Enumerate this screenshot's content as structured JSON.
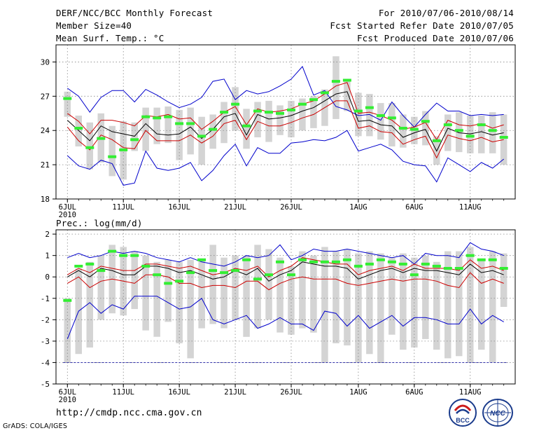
{
  "header": {
    "title": "DERF/NCC/BCC Monthly Forecast",
    "member_size": "Member Size=40",
    "variable": "Mean Surf. Temp.: °C",
    "period": "For 2010/07/06-2010/08/14",
    "start_date": "Fcst Started Refer Date 2010/07/05",
    "produced_date": "Fcst Produced Date 2010/07/06"
  },
  "panel2_label": "Prec.: log(mm/d)",
  "footer": {
    "url": "http://cmdp.ncc.cma.gov.cn",
    "grads": "GrADS: COLA/IGES",
    "logo_bcc": "BCC",
    "logo_ncc": "NCC"
  },
  "colors": {
    "max_min": "#0000cc",
    "spread": "#cc0000",
    "mean": "#000000",
    "observed": "#33ee33",
    "bar": "#d4d4d4"
  },
  "chart_data": [
    {
      "type": "line",
      "title": "Mean Surf. Temp.: °C",
      "xlabel": "",
      "ylabel": "",
      "ylim": [
        18,
        31.5
      ],
      "yticks": [
        18,
        21,
        24,
        27,
        30
      ],
      "x_tick_labels": [
        "6JUL",
        "11JUL",
        "16JUL",
        "21JUL",
        "26JUL",
        "1AUG",
        "6AUG",
        "11AUG"
      ],
      "x_tick_days": [
        1,
        6,
        11,
        16,
        21,
        27,
        32,
        37
      ],
      "x_sublabel": "2010",
      "days": [
        1,
        2,
        3,
        4,
        5,
        6,
        7,
        8,
        9,
        10,
        11,
        12,
        13,
        14,
        15,
        16,
        17,
        18,
        19,
        20,
        21,
        22,
        23,
        24,
        25,
        26,
        27,
        28,
        29,
        30,
        31,
        32,
        33,
        34,
        35,
        36,
        37,
        38,
        39,
        40
      ],
      "series": [
        {
          "name": "max",
          "values": [
            27.7,
            27.0,
            25.6,
            26.9,
            27.5,
            27.5,
            26.5,
            27.6,
            27.1,
            26.5,
            26.0,
            26.3,
            26.9,
            28.3,
            28.5,
            26.7,
            27.5,
            27.2,
            27.4,
            27.9,
            28.5,
            29.6,
            27.1,
            27.5,
            26.1,
            25.8,
            25.3,
            25.4,
            24.9,
            26.5,
            25.3,
            24.3,
            25.4,
            26.4,
            25.7,
            25.7,
            25.3,
            25.4,
            25.3,
            25.4
          ]
        },
        {
          "name": "upper",
          "values": [
            25.5,
            24.8,
            23.7,
            24.9,
            24.9,
            24.7,
            24.4,
            25.3,
            25.2,
            25.4,
            25.0,
            25.1,
            24.1,
            24.8,
            25.6,
            26.1,
            24.5,
            25.9,
            25.6,
            25.7,
            25.9,
            26.3,
            26.6,
            27.2,
            27.9,
            28.2,
            25.5,
            25.6,
            25.3,
            24.9,
            24.1,
            24.3,
            24.7,
            23.2,
            24.9,
            24.5,
            24.4,
            24.6,
            24.2,
            24.5
          ]
        },
        {
          "name": "mean",
          "values": [
            24.9,
            24.0,
            23.1,
            24.4,
            23.9,
            23.7,
            23.5,
            24.6,
            23.7,
            23.6,
            23.7,
            24.3,
            23.3,
            24.1,
            25.2,
            25.5,
            23.6,
            25.4,
            25.0,
            25.1,
            25.3,
            25.7,
            26.0,
            26.6,
            27.2,
            27.4,
            24.8,
            24.9,
            24.5,
            24.4,
            23.4,
            23.8,
            24.1,
            22.2,
            24.2,
            23.8,
            23.7,
            23.9,
            23.6,
            23.8
          ]
        },
        {
          "name": "lower",
          "values": [
            24.3,
            23.1,
            22.3,
            23.6,
            23.2,
            22.5,
            22.4,
            24.0,
            23.1,
            23.1,
            23.1,
            23.6,
            22.9,
            23.5,
            24.6,
            24.9,
            23.2,
            24.8,
            24.4,
            24.4,
            24.7,
            25.1,
            25.4,
            26.0,
            26.6,
            26.6,
            24.2,
            24.4,
            23.9,
            23.8,
            22.8,
            23.2,
            23.5,
            21.6,
            23.6,
            23.3,
            23.1,
            23.4,
            23.0,
            23.2
          ]
        },
        {
          "name": "min",
          "values": [
            21.8,
            20.9,
            20.6,
            21.4,
            21.1,
            19.2,
            19.4,
            22.2,
            20.7,
            20.5,
            20.7,
            21.2,
            19.6,
            20.5,
            21.8,
            22.8,
            20.9,
            22.5,
            22.0,
            22.0,
            22.9,
            23.0,
            23.2,
            23.1,
            23.4,
            24.0,
            22.2,
            22.5,
            22.8,
            22.3,
            21.3,
            21.0,
            20.9,
            19.5,
            21.6,
            21.0,
            20.4,
            21.2,
            20.7,
            21.5
          ]
        },
        {
          "name": "observed",
          "values": [
            26.8,
            24.2,
            22.5,
            23.3,
            21.7,
            22.3,
            23.2,
            25.2,
            25.1,
            25.2,
            24.6,
            24.6,
            23.5,
            24.1,
            25.6,
            26.3,
            24.4,
            25.7,
            25.6,
            25.5,
            25.8,
            26.3,
            26.7,
            27.3,
            28.3,
            28.4,
            25.7,
            26.0,
            25.3,
            25.1,
            24.2,
            24.1,
            24.8,
            23.1,
            24.5,
            24.0,
            23.5,
            24.5,
            24.0,
            23.4
          ]
        }
      ],
      "bars": [
        {
          "lo": 25.2,
          "hi": 27.4
        },
        {
          "lo": 22.6,
          "hi": 25.3
        },
        {
          "lo": 20.6,
          "hi": 24.7
        },
        {
          "lo": 21.2,
          "hi": 25.5
        },
        {
          "lo": 20.0,
          "hi": 24.4
        },
        {
          "lo": 19.7,
          "hi": 24.8
        },
        {
          "lo": 22.2,
          "hi": 24.7
        },
        {
          "lo": 22.2,
          "hi": 26.0
        },
        {
          "lo": 22.8,
          "hi": 26.0
        },
        {
          "lo": 22.9,
          "hi": 26.1
        },
        {
          "lo": 21.4,
          "hi": 25.8
        },
        {
          "lo": 21.9,
          "hi": 26.0
        },
        {
          "lo": 21.0,
          "hi": 25.2
        },
        {
          "lo": 22.4,
          "hi": 25.4
        },
        {
          "lo": 22.9,
          "hi": 26.5
        },
        {
          "lo": 24.0,
          "hi": 27.8
        },
        {
          "lo": 22.4,
          "hi": 25.9
        },
        {
          "lo": 23.4,
          "hi": 26.5
        },
        {
          "lo": 23.0,
          "hi": 26.6
        },
        {
          "lo": 23.6,
          "hi": 26.2
        },
        {
          "lo": 23.4,
          "hi": 26.6
        },
        {
          "lo": 24.0,
          "hi": 26.8
        },
        {
          "lo": 24.2,
          "hi": 27.0
        },
        {
          "lo": 24.4,
          "hi": 27.6
        },
        {
          "lo": 25.0,
          "hi": 30.5
        },
        {
          "lo": 25.7,
          "hi": 28.5
        },
        {
          "lo": 23.5,
          "hi": 27.3
        },
        {
          "lo": 23.5,
          "hi": 27.2
        },
        {
          "lo": 23.2,
          "hi": 26.4
        },
        {
          "lo": 22.6,
          "hi": 26.4
        },
        {
          "lo": 22.5,
          "hi": 25.4
        },
        {
          "lo": 22.8,
          "hi": 25.2
        },
        {
          "lo": 22.7,
          "hi": 25.7
        },
        {
          "lo": 21.0,
          "hi": 23.5
        },
        {
          "lo": 22.2,
          "hi": 25.4
        },
        {
          "lo": 22.1,
          "hi": 25.6
        },
        {
          "lo": 22.0,
          "hi": 25.3
        },
        {
          "lo": 22.0,
          "hi": 25.3
        },
        {
          "lo": 22.0,
          "hi": 25.6
        },
        {
          "lo": 21.0,
          "hi": 25.4
        }
      ]
    },
    {
      "type": "line",
      "title": "Prec.: log(mm/d)",
      "xlabel": "",
      "ylabel": "",
      "ylim": [
        -5,
        2.2
      ],
      "yticks": [
        -5,
        -4,
        -3,
        -2,
        -1,
        0,
        1,
        2
      ],
      "x_tick_labels": [
        "6JUL",
        "11JUL",
        "16JUL",
        "21JUL",
        "26JUL",
        "1AUG",
        "6AUG",
        "11AUG"
      ],
      "x_tick_days": [
        1,
        6,
        11,
        16,
        21,
        27,
        32,
        37
      ],
      "x_sublabel": "2010",
      "days": [
        1,
        2,
        3,
        4,
        5,
        6,
        7,
        8,
        9,
        10,
        11,
        12,
        13,
        14,
        15,
        16,
        17,
        18,
        19,
        20,
        21,
        22,
        23,
        24,
        25,
        26,
        27,
        28,
        29,
        30,
        31,
        32,
        33,
        34,
        35,
        36,
        37,
        38,
        39,
        40
      ],
      "reference_line": -4,
      "series": [
        {
          "name": "max",
          "values": [
            0.9,
            1.1,
            0.9,
            1.0,
            1.2,
            1.1,
            1.2,
            1.1,
            0.9,
            0.8,
            0.7,
            0.9,
            0.7,
            0.6,
            0.5,
            0.7,
            1.0,
            0.9,
            1.0,
            1.5,
            0.8,
            1.0,
            1.3,
            1.2,
            1.2,
            1.3,
            1.2,
            1.1,
            1.0,
            0.9,
            1.0,
            0.6,
            1.1,
            1.0,
            1.0,
            0.9,
            1.6,
            1.3,
            1.2,
            1.0
          ]
        },
        {
          "name": "upper",
          "values": [
            0.1,
            0.4,
            0.2,
            0.5,
            0.4,
            0.3,
            0.3,
            0.6,
            0.6,
            0.5,
            0.4,
            0.5,
            0.3,
            0.1,
            0.2,
            0.4,
            0.3,
            0.5,
            0.0,
            0.3,
            0.5,
            0.9,
            0.8,
            0.7,
            0.6,
            0.6,
            0.1,
            0.3,
            0.4,
            0.5,
            0.3,
            0.6,
            0.4,
            0.4,
            0.4,
            0.3,
            0.8,
            0.4,
            0.5,
            0.3
          ]
        },
        {
          "name": "mean",
          "values": [
            0.0,
            0.3,
            0.0,
            0.4,
            0.3,
            0.1,
            0.1,
            0.5,
            0.5,
            0.4,
            0.2,
            0.3,
            0.1,
            -0.1,
            0.0,
            0.3,
            0.1,
            0.4,
            -0.2,
            0.1,
            0.3,
            0.7,
            0.6,
            0.5,
            0.5,
            0.4,
            -0.1,
            0.1,
            0.3,
            0.4,
            0.2,
            0.4,
            0.3,
            0.3,
            0.2,
            0.1,
            0.6,
            0.2,
            0.3,
            0.1
          ]
        },
        {
          "name": "lower",
          "values": [
            -0.3,
            0.0,
            -0.5,
            -0.2,
            -0.1,
            -0.2,
            -0.3,
            0.1,
            0.1,
            0.0,
            -0.3,
            -0.3,
            -0.5,
            -0.4,
            -0.4,
            -0.5,
            -0.2,
            -0.2,
            -0.6,
            -0.3,
            -0.1,
            0.0,
            -0.1,
            -0.1,
            -0.1,
            -0.3,
            -0.4,
            -0.3,
            -0.2,
            -0.1,
            -0.2,
            -0.1,
            -0.1,
            -0.2,
            -0.4,
            -0.5,
            0.2,
            -0.3,
            -0.1,
            -0.3
          ]
        },
        {
          "name": "min",
          "values": [
            -2.9,
            -1.6,
            -1.2,
            -1.7,
            -1.3,
            -1.5,
            -0.9,
            -0.9,
            -0.9,
            -1.2,
            -1.5,
            -1.4,
            -1.0,
            -2.0,
            -2.2,
            -2.0,
            -1.8,
            -2.4,
            -2.2,
            -1.9,
            -2.2,
            -2.2,
            -2.5,
            -1.6,
            -1.7,
            -2.3,
            -1.8,
            -2.4,
            -2.1,
            -1.8,
            -2.3,
            -1.9,
            -1.9,
            -2.0,
            -2.2,
            -2.2,
            -1.5,
            -2.2,
            -1.8,
            -2.1
          ]
        },
        {
          "name": "observed",
          "values": [
            -1.1,
            0.5,
            0.6,
            0.3,
            1.2,
            1.0,
            1.0,
            0.5,
            0.1,
            -0.3,
            -0.2,
            0.2,
            0.8,
            0.3,
            0.2,
            0.3,
            0.8,
            -0.1,
            0.1,
            0.7,
            0.1,
            0.8,
            0.7,
            0.7,
            0.7,
            0.8,
            0.5,
            0.6,
            0.8,
            0.7,
            0.6,
            0.1,
            0.6,
            0.5,
            0.4,
            0.4,
            1.0,
            0.8,
            0.8,
            0.4
          ]
        }
      ],
      "bars": [
        {
          "lo": -4.0,
          "hi": -1.0
        },
        {
          "lo": -3.6,
          "hi": 0.4
        },
        {
          "lo": -3.3,
          "hi": 0.7
        },
        {
          "lo": -2.0,
          "hi": 1.0
        },
        {
          "lo": -1.7,
          "hi": 1.5
        },
        {
          "lo": -1.8,
          "hi": 1.4
        },
        {
          "lo": -1.5,
          "hi": 1.2
        },
        {
          "lo": -2.5,
          "hi": 1.0
        },
        {
          "lo": -2.8,
          "hi": 0.7
        },
        {
          "lo": -2.1,
          "hi": 0.8
        },
        {
          "lo": -3.1,
          "hi": 0.7
        },
        {
          "lo": -3.8,
          "hi": 0.8
        },
        {
          "lo": -2.4,
          "hi": 0.8
        },
        {
          "lo": -2.2,
          "hi": 1.5
        },
        {
          "lo": -2.4,
          "hi": 0.9
        },
        {
          "lo": -2.0,
          "hi": 1.0
        },
        {
          "lo": -2.8,
          "hi": 1.0
        },
        {
          "lo": -2.4,
          "hi": 1.5
        },
        {
          "lo": -2.0,
          "hi": 1.3
        },
        {
          "lo": -2.6,
          "hi": 0.9
        },
        {
          "lo": -2.7,
          "hi": 0.5
        },
        {
          "lo": -2.4,
          "hi": 1.2
        },
        {
          "lo": -2.6,
          "hi": 1.0
        },
        {
          "lo": -4.0,
          "hi": 1.4
        },
        {
          "lo": -3.1,
          "hi": 1.2
        },
        {
          "lo": -3.2,
          "hi": 1.3
        },
        {
          "lo": -4.0,
          "hi": 1.1
        },
        {
          "lo": -3.6,
          "hi": 1.2
        },
        {
          "lo": -4.0,
          "hi": 1.1
        },
        {
          "lo": -2.7,
          "hi": 0.9
        },
        {
          "lo": -3.4,
          "hi": 1.1
        },
        {
          "lo": -3.3,
          "hi": 0.9
        },
        {
          "lo": -2.9,
          "hi": 1.0
        },
        {
          "lo": -3.4,
          "hi": 0.7
        },
        {
          "lo": -3.8,
          "hi": 1.2
        },
        {
          "lo": -3.7,
          "hi": 1.2
        },
        {
          "lo": -4.0,
          "hi": 1.4
        },
        {
          "lo": -3.4,
          "hi": 0.8
        },
        {
          "lo": -4.0,
          "hi": 1.2
        },
        {
          "lo": -1.4,
          "hi": 1.1
        }
      ]
    }
  ]
}
